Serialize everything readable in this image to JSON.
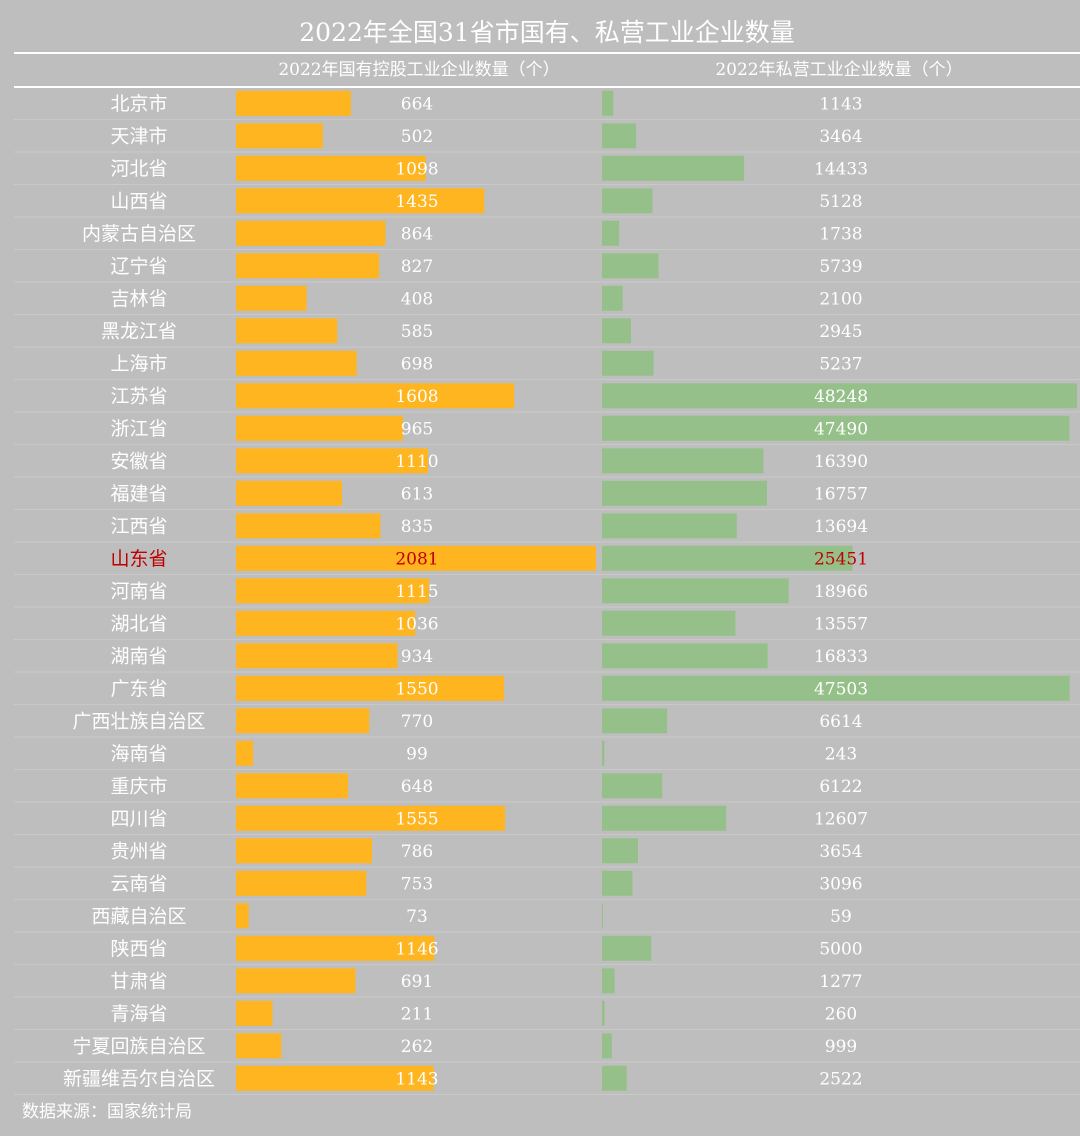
{
  "chart_data": {
    "type": "bar",
    "title": "2022年全国31省市国有、私营工业企业数量",
    "highlight": "山东省",
    "colors": {
      "state": "#ffb520",
      "private": "#96c08a",
      "label": "#ffffff",
      "highlight": "#c00000",
      "background": "#bebebe"
    },
    "categories": [
      "北京市",
      "天津市",
      "河北省",
      "山西省",
      "内蒙古自治区",
      "辽宁省",
      "吉林省",
      "黑龙江省",
      "上海市",
      "江苏省",
      "浙江省",
      "安徽省",
      "福建省",
      "江西省",
      "山东省",
      "河南省",
      "湖北省",
      "湖南省",
      "广东省",
      "广西壮族自治区",
      "海南省",
      "重庆市",
      "四川省",
      "贵州省",
      "云南省",
      "西藏自治区",
      "陕西省",
      "甘肃省",
      "青海省",
      "宁夏回族自治区",
      "新疆维吾尔自治区"
    ],
    "series": [
      {
        "name": "2022年国有控股工业企业数量（个）",
        "values": [
          664,
          502,
          1098,
          1435,
          864,
          827,
          408,
          585,
          698,
          1608,
          965,
          1110,
          613,
          835,
          2081,
          1115,
          1036,
          934,
          1550,
          770,
          99,
          648,
          1555,
          786,
          753,
          73,
          1146,
          691,
          211,
          262,
          1143
        ]
      },
      {
        "name": "2022年私营工业企业数量（个）",
        "values": [
          1143,
          3464,
          14433,
          5128,
          1738,
          5739,
          2100,
          2945,
          5237,
          48248,
          47490,
          16390,
          16757,
          13694,
          25451,
          18966,
          13557,
          16833,
          47503,
          6614,
          243,
          6122,
          12607,
          3654,
          3096,
          59,
          5000,
          1277,
          260,
          999,
          2522
        ]
      }
    ],
    "source": "数据来源：国家统计局"
  }
}
